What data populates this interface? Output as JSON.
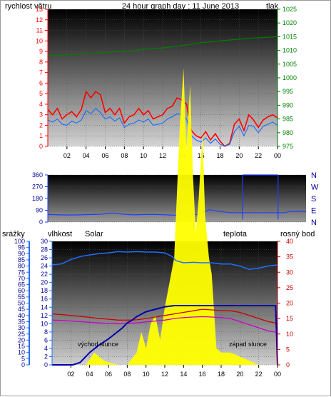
{
  "colors": {
    "wind": "#ff0000",
    "pressure": "#008000",
    "title": "#000099",
    "direction": "#1f3fff",
    "humidity": "#1f6fff",
    "solar": "#ffff00",
    "solar_label": "#ff9900",
    "temperature": "#cc0000",
    "dewpoint": "#cc00cc",
    "rain": "#0000aa",
    "rain_axis": "#1f6fff",
    "humidity_axis": "#1f6fff"
  },
  "chart_data": [
    {
      "type": "line",
      "title": "24 hour graph day : 11 June 2013",
      "ylabel_left": "rychlost větru",
      "ylabel_right": "tlak",
      "x_ticks": [
        "02",
        "04",
        "06",
        "08",
        "10",
        "12",
        "14",
        "16",
        "18",
        "20",
        "22",
        "00"
      ],
      "y_left": {
        "range": [
          0,
          13
        ],
        "ticks": [
          0,
          1,
          2,
          3,
          4,
          5,
          6,
          7,
          8,
          9,
          10,
          11,
          12,
          13
        ]
      },
      "y_right": {
        "range": [
          975,
          1025
        ],
        "ticks": [
          975,
          980,
          985,
          990,
          995,
          1000,
          1005,
          1010,
          1015,
          1020,
          1025
        ]
      },
      "series": [
        {
          "axis": "left",
          "x": [
            0,
            0.5,
            1,
            1.5,
            2,
            2.5,
            3,
            3.5,
            4,
            4.5,
            5,
            5.5,
            6,
            6.5,
            7,
            7.5,
            8,
            8.5,
            9,
            9.5,
            10,
            10.5,
            11,
            11.5,
            12,
            12.5,
            13,
            13.5,
            14,
            14.5,
            15,
            15.5,
            16,
            16.5,
            17,
            17.5,
            18,
            18.5,
            19,
            19.5,
            20,
            20.5,
            21,
            21.5,
            22,
            22.5,
            23,
            23.5,
            24
          ],
          "values": [
            3.5,
            3.0,
            3.6,
            2.6,
            3.0,
            3.3,
            2.8,
            3.5,
            5.2,
            4.6,
            5.2,
            4.9,
            3.2,
            3.6,
            3.0,
            3.6,
            2.2,
            2.8,
            3.0,
            3.6,
            3.0,
            3.4,
            2.6,
            2.8,
            3.0,
            3.6,
            3.8,
            4.6,
            4.4,
            4.0,
            1.5,
            1.0,
            0.8,
            1.4,
            0.6,
            1.2,
            0.5,
            0.0,
            0.3,
            2.1,
            2.6,
            1.5,
            3.0,
            2.5,
            1.8,
            2.5,
            2.8,
            3.0,
            2.7
          ]
        },
        {
          "axis": "left",
          "x": [
            0,
            0.5,
            1,
            1.5,
            2,
            2.5,
            3,
            3.5,
            4,
            4.5,
            5,
            5.5,
            6,
            6.5,
            7,
            7.5,
            8,
            8.5,
            9,
            9.5,
            10,
            10.5,
            11,
            11.5,
            12,
            12.5,
            13,
            13.5,
            14,
            14.5,
            15,
            15.5,
            16,
            16.5,
            17,
            17.5,
            18,
            18.5,
            19,
            19.5,
            20,
            20.5,
            21,
            21.5,
            22,
            22.5,
            23,
            23.5,
            24
          ],
          "values": [
            2.5,
            2.3,
            2.6,
            2.1,
            2.0,
            2.4,
            2.2,
            2.5,
            3.4,
            3.1,
            3.6,
            3.2,
            2.6,
            2.8,
            2.4,
            2.7,
            1.8,
            2.1,
            2.2,
            2.5,
            2.3,
            2.6,
            2.0,
            2.1,
            2.2,
            2.6,
            2.8,
            3.1,
            3.0,
            2.6,
            1.0,
            0.6,
            0.4,
            0.8,
            0.3,
            0.7,
            0.2,
            0.0,
            0.2,
            1.4,
            1.9,
            1.0,
            2.0,
            1.9,
            1.3,
            1.9,
            2.1,
            2.3,
            2.0
          ]
        },
        {
          "axis": "right",
          "x": [
            0,
            1,
            2,
            3,
            4,
            5,
            6,
            7,
            8,
            9,
            10,
            11,
            12,
            13,
            14,
            15,
            16,
            17,
            18,
            19,
            20,
            21,
            22,
            23,
            24
          ],
          "values": [
            1008.0,
            1008.2,
            1008.4,
            1008.6,
            1008.8,
            1009.0,
            1009.2,
            1009.5,
            1009.7,
            1010.0,
            1010.3,
            1010.6,
            1010.9,
            1011.3,
            1011.8,
            1012.3,
            1012.8,
            1013.1,
            1013.5,
            1013.8,
            1014.1,
            1014.4,
            1014.6,
            1014.8,
            1015.0
          ]
        }
      ]
    },
    {
      "type": "line",
      "y_left": {
        "range": [
          0,
          360
        ],
        "ticks": [
          0,
          90,
          180,
          270,
          360
        ]
      },
      "compass_labels": [
        "N",
        "W",
        "S",
        "E",
        "N"
      ],
      "series": [
        {
          "x": [
            0,
            1,
            2,
            3,
            4,
            5,
            6,
            7,
            8,
            9,
            10,
            11,
            12,
            12.2,
            12.6,
            13,
            13.5,
            14,
            14.5,
            15,
            16,
            17,
            17.5,
            18,
            18.5,
            19,
            20,
            21,
            22,
            22.5,
            23,
            24
          ],
          "values": [
            58,
            55,
            54,
            55,
            58,
            60,
            70,
            60,
            55,
            58,
            58,
            55,
            52,
            20,
            30,
            48,
            55,
            60,
            75,
            95,
            80,
            72,
            72,
            72,
            72,
            72,
            72,
            72,
            72,
            80,
            80,
            80
          ]
        }
      ]
    },
    {
      "type": "line",
      "ylabel_rain": "srážky",
      "ylabel_humidity": "vlhkost",
      "ylabel_solar": "Solar",
      "ylabel_temperature": "teplota",
      "ylabel_dewpoint": "rosný bod",
      "x_ticks": [
        "02",
        "04",
        "06",
        "08",
        "10",
        "12",
        "14",
        "16",
        "18",
        "20",
        "22",
        "00"
      ],
      "annotations": [
        "východ slunce",
        "západ slunce"
      ],
      "y_rain": {
        "range": [
          0,
          100
        ],
        "ticks": [
          0,
          5,
          10,
          15,
          20,
          25,
          30,
          35,
          40,
          45,
          50,
          55,
          60,
          65,
          70,
          75,
          80,
          85,
          90,
          95,
          100
        ]
      },
      "y_humidity": {
        "range": [
          0,
          30
        ],
        "ticks": [
          0,
          2,
          4,
          6,
          8,
          10,
          12,
          14,
          16,
          18,
          20,
          22,
          24,
          26,
          28,
          30
        ]
      },
      "y_temperature": {
        "range": [
          0,
          40
        ],
        "ticks": [
          0,
          5,
          10,
          15,
          20,
          25,
          30,
          35,
          40
        ]
      },
      "series": [
        {
          "axis": "humidity",
          "x": [
            0,
            1,
            2,
            3,
            4,
            5,
            6,
            7,
            8,
            9,
            10,
            11,
            12,
            12.8,
            13.2,
            14,
            15,
            16,
            17,
            18,
            19,
            20,
            21,
            22,
            23,
            24
          ],
          "values": [
            24.3,
            24.5,
            25.6,
            26.3,
            26.7,
            27.0,
            27.2,
            27.5,
            27.4,
            27.5,
            27.4,
            27.4,
            27.2,
            26.3,
            25.3,
            24.8,
            24.9,
            24.8,
            24.8,
            24.5,
            24.5,
            24.0,
            23.2,
            23.5,
            24.0,
            24.3
          ]
        },
        {
          "axis": "temperature",
          "x": [
            0,
            1,
            2,
            3,
            4,
            5,
            6,
            7,
            8,
            9,
            10,
            11,
            12,
            13,
            14,
            15,
            16,
            17,
            18,
            19,
            20,
            21,
            22,
            23,
            24
          ],
          "values": [
            16.5,
            16.3,
            16.0,
            15.7,
            15.4,
            15.0,
            14.8,
            14.5,
            14.5,
            14.6,
            15.0,
            15.5,
            16.0,
            16.5,
            17.0,
            17.5,
            18.0,
            17.8,
            17.6,
            17.5,
            17.0,
            16.0,
            15.0,
            14.0,
            13.5
          ]
        },
        {
          "axis": "temperature",
          "x": [
            0,
            1,
            2,
            3,
            4,
            5,
            6,
            7,
            8,
            9,
            10,
            11,
            12,
            13,
            14,
            15,
            16,
            17,
            18,
            19,
            20,
            21,
            22,
            23,
            24
          ],
          "values": [
            14.5,
            14.4,
            14.2,
            14.0,
            13.8,
            13.6,
            13.4,
            13.3,
            13.4,
            13.6,
            13.9,
            14.2,
            14.5,
            15.0,
            15.3,
            15.5,
            15.6,
            15.5,
            15.3,
            15.0,
            14.0,
            13.0,
            12.0,
            11.0,
            10.5
          ]
        },
        {
          "axis": "rain",
          "x": [
            0,
            1,
            2,
            2.2,
            3,
            4,
            5,
            6,
            7,
            7.5,
            8,
            8.5,
            9,
            10,
            11,
            12,
            13,
            14,
            15,
            16,
            17,
            18,
            19,
            20,
            21,
            22,
            23,
            23.8,
            24
          ],
          "values": [
            0,
            0,
            0,
            0,
            2,
            10,
            16,
            21,
            27,
            30,
            34,
            36,
            39,
            43,
            45,
            47,
            48,
            48,
            48,
            48,
            48,
            48,
            48,
            48,
            48,
            48,
            48,
            48,
            0
          ]
        },
        {
          "axis": "solar",
          "x": [
            0,
            3.6,
            4.5,
            5.5,
            7,
            8,
            9,
            9.5,
            10,
            10.5,
            11,
            11.5,
            12,
            12.5,
            13,
            13.3,
            13.6,
            14,
            14.3,
            14.7,
            15,
            15.3,
            15.6,
            16,
            16.3,
            16.7,
            17,
            17.5,
            18,
            19,
            20,
            21,
            22,
            24
          ],
          "values": [
            0,
            0,
            3,
            1,
            0,
            0,
            3,
            8,
            4,
            10,
            12,
            6,
            14,
            20,
            26,
            42,
            58,
            72,
            52,
            68,
            46,
            32,
            40,
            56,
            36,
            26,
            22,
            4,
            3,
            3,
            2,
            1,
            0,
            0
          ]
        }
      ]
    }
  ]
}
